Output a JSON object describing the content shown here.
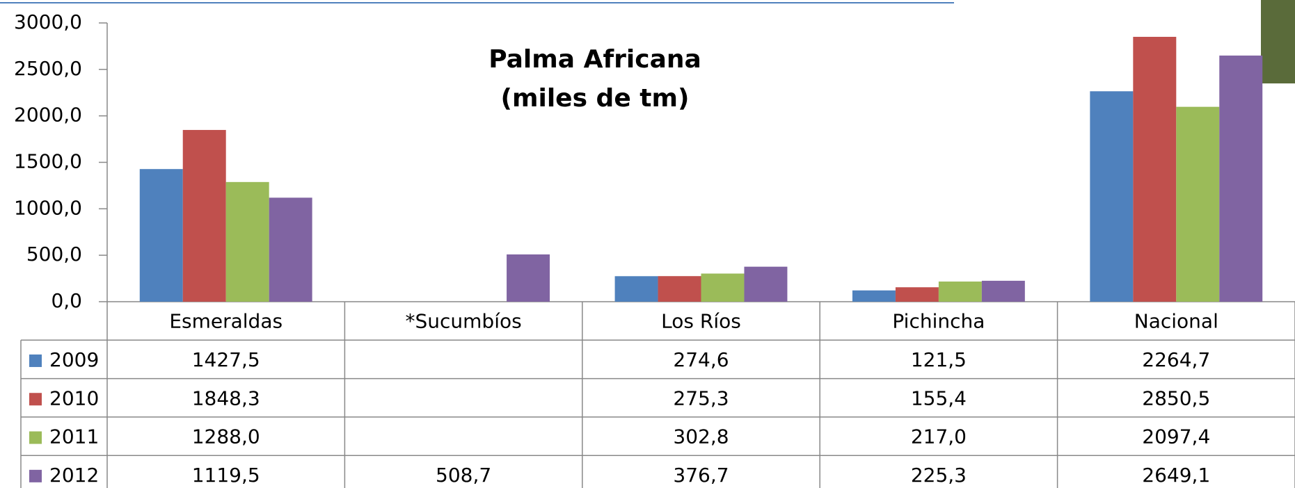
{
  "chart_data": {
    "type": "bar",
    "title": "Palma Africana",
    "subtitle": "(miles de tm)",
    "categories": [
      "Esmeraldas",
      "*Sucumbíos",
      "Los Ríos",
      "Pichincha",
      "Nacional"
    ],
    "series": [
      {
        "name": "2009",
        "color": "#4f81bd",
        "values": [
          1427.5,
          null,
          274.6,
          121.5,
          2264.7
        ],
        "value_labels": [
          "1427,5",
          null,
          "274,6",
          "121,5",
          "2264,7"
        ]
      },
      {
        "name": "2010",
        "color": "#c0504d",
        "values": [
          1848.3,
          null,
          275.3,
          155.4,
          2850.5
        ],
        "value_labels": [
          "1848,3",
          null,
          "275,3",
          "155,4",
          "2850,5"
        ]
      },
      {
        "name": "2011",
        "color": "#9bbb59",
        "values": [
          1288.0,
          null,
          302.8,
          217.0,
          2097.4
        ],
        "value_labels": [
          "1288,0",
          null,
          "302,8",
          "217,0",
          "2097,4"
        ]
      },
      {
        "name": "2012",
        "color": "#8064a2",
        "values": [
          1119.5,
          508.7,
          376.7,
          225.3,
          2649.1
        ],
        "value_labels": [
          "1119,5",
          "508,7",
          "376,7",
          "225,3",
          "2649,1"
        ]
      }
    ],
    "ylim": [
      0,
      3000
    ],
    "yticks": [
      {
        "value": 0,
        "label": "0,0"
      },
      {
        "value": 500,
        "label": "500,0"
      },
      {
        "value": 1000,
        "label": "1000,0"
      },
      {
        "value": 1500,
        "label": "1500,0"
      },
      {
        "value": 2000,
        "label": "2000,0"
      },
      {
        "value": 2500,
        "label": "2500,0"
      },
      {
        "value": 3000,
        "label": "3000,0"
      }
    ],
    "grid": false,
    "legend": "table"
  }
}
